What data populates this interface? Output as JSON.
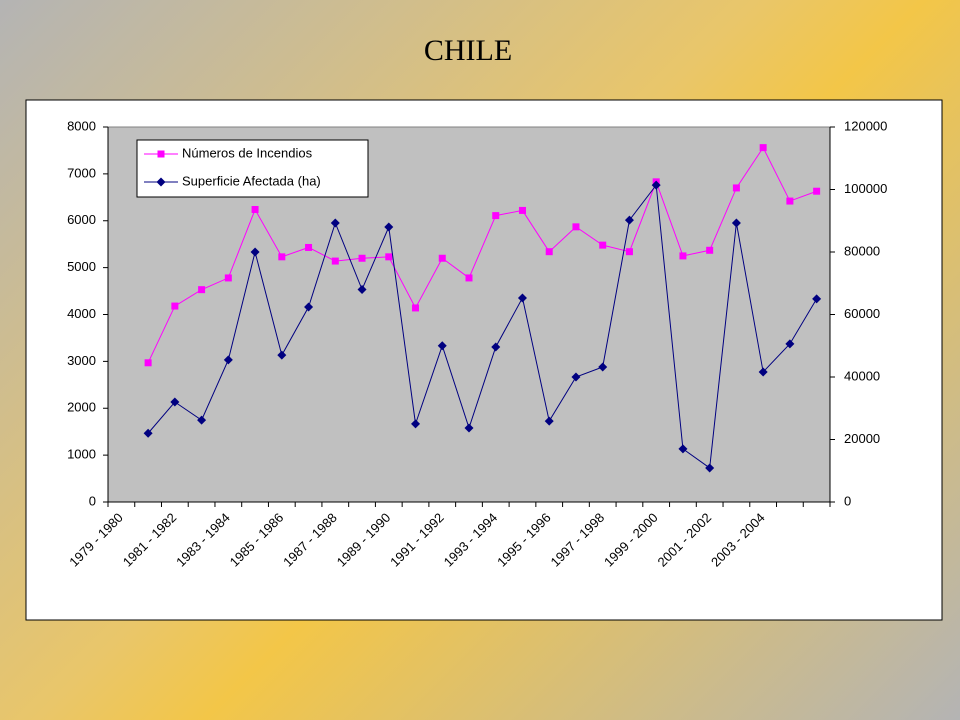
{
  "chart_data": {
    "type": "line",
    "title": "CHILE",
    "categories": [
      "1979 - 1980",
      null,
      "1981 - 1982",
      null,
      "1983 - 1984",
      null,
      "1985 - 1986",
      null,
      "1987 - 1988",
      null,
      "1989 - 1990",
      null,
      "1991 - 1992",
      null,
      "1993 - 1994",
      null,
      "1995 - 1996",
      null,
      "1997 - 1998",
      null,
      "1999 - 2000",
      null,
      "2001 - 2002",
      null,
      "2003 - 2004",
      null,
      null
    ],
    "series": [
      {
        "name": "Números de Incendios",
        "color": "#ff00ff",
        "marker": "square",
        "values": [
          null,
          2970,
          4180,
          4530,
          4780,
          6240,
          5230,
          5430,
          5140,
          5200,
          5230,
          4140,
          5200,
          4780,
          6110,
          6220,
          5340,
          5870,
          5480,
          5340,
          6830,
          5250,
          5370,
          6700,
          7560,
          6420,
          6630
        ]
      },
      {
        "name": "Superficie Afectada (ha)",
        "color": "#000080",
        "marker": "diamond",
        "axis": "y2",
        "values": [
          null,
          22000,
          32000,
          26200,
          45500,
          80000,
          47000,
          62400,
          89300,
          68000,
          88000,
          25000,
          50000,
          23700,
          49600,
          65300,
          25900,
          40000,
          43200,
          90200,
          101400,
          17000,
          10900,
          89300,
          41600,
          50600,
          65000
        ]
      }
    ],
    "ylim": [
      0,
      8000
    ],
    "yticks": [
      0,
      1000,
      2000,
      3000,
      4000,
      5000,
      6000,
      7000,
      8000
    ],
    "y2lim": [
      0,
      120000
    ],
    "y2ticks": [
      0,
      20000,
      40000,
      60000,
      80000,
      100000,
      120000
    ]
  }
}
